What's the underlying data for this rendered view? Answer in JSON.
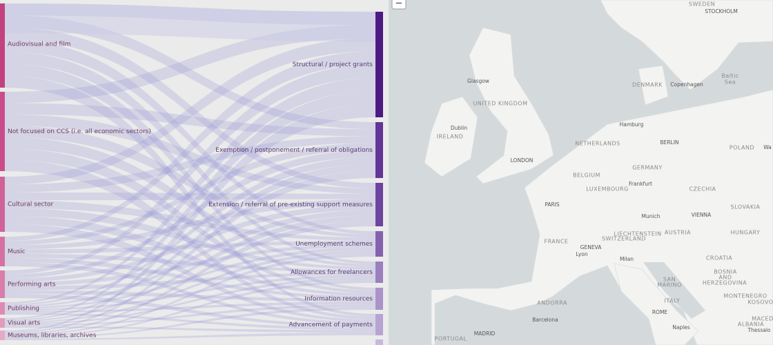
{
  "sankey": {
    "sources": [
      "Audiovisual and film",
      "Not focused on CCS (i.e. all economic sectors)",
      "Cultural sector",
      "Music",
      "Performing arts",
      "Publishing",
      "Visual arts",
      "Museums, libraries, archives"
    ],
    "targets": [
      "Structural / project grants",
      "Exemption / postponement / referral of obligations",
      "Extension / referral of pre-existing support measures",
      "Unemployment schemes",
      "Allowances for freelancers",
      "Information resources",
      "Advancement of payments"
    ]
  },
  "map": {
    "zoom_out": "−",
    "labels": [
      "SWEDEN",
      "STOCKHOLM",
      "Baltic",
      "Sea",
      "DENMARK",
      "Copenhagen",
      "Glasgow",
      "UNITED KINGDOM",
      "Dublin",
      "IRELAND",
      "LONDON",
      "Hamburg",
      "NETHERLANDS",
      "BERLIN",
      "POLAND",
      "Wa",
      "BELGIUM",
      "GERMANY",
      "LUXEMBOURG",
      "Frankfurt",
      "CZECHIA",
      "PARIS",
      "SLOVAKIA",
      "Munich",
      "VIENNA",
      "FRANCE",
      "LIECHTENSTEIN",
      "AUSTRIA",
      "HUNGARY",
      "GENEVA",
      "SWITZERLAND",
      "Lyon",
      "Milan",
      "CROATIA",
      "BOSNIA",
      "AND",
      "HERZEGOVINA",
      "SAN",
      "MARINO",
      "MONTENEGRO",
      "KOSOVO",
      "ANDORRA",
      "ITALY",
      "ROME",
      "Barcelona",
      "MACED",
      "MADRID",
      "ALBANIA",
      "PORTUGAL",
      "Naples",
      "Thessalo"
    ]
  }
}
